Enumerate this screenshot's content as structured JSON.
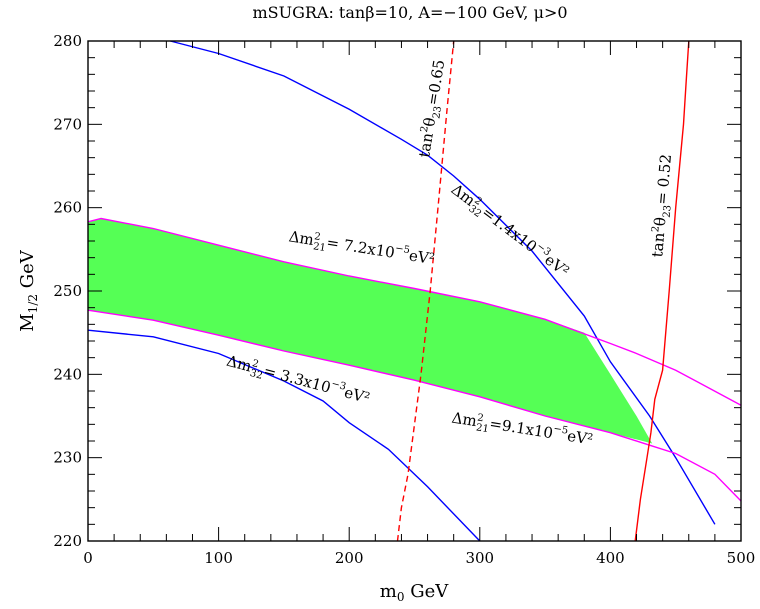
{
  "chart_data": {
    "type": "line",
    "title": "mSUGRA: tanβ=10, A=−100 GeV, μ>0",
    "xlabel": "m₀ GeV",
    "ylabel": "M₁/₂ GeV",
    "xlim": [
      0,
      500
    ],
    "ylim": [
      220,
      280
    ],
    "x_ticks": [
      0,
      100,
      200,
      300,
      400,
      500
    ],
    "y_ticks": [
      220,
      230,
      240,
      250,
      260,
      270,
      280
    ],
    "grid": false,
    "colors": {
      "blue": "#0000ff",
      "magenta": "#ff00ff",
      "red": "#ff0000",
      "band": "#55ff55"
    },
    "series": [
      {
        "name": "Δm²32 = 1.4x10⁻³eV²",
        "color": "#0000ff",
        "style": "solid",
        "x": [
          63,
          100,
          150,
          200,
          240,
          260,
          280,
          300,
          340,
          380,
          400,
          430,
          450,
          480
        ],
        "y": [
          280,
          278.5,
          275.8,
          271.8,
          268.2,
          266.3,
          263.8,
          261.0,
          254.8,
          247.0,
          241.5,
          235.0,
          230.0,
          222.0
        ]
      },
      {
        "name": "Δm²32 = 3.3x10⁻³eV²",
        "color": "#0000ff",
        "style": "solid",
        "x": [
          0,
          50,
          100,
          150,
          180,
          200,
          230,
          260,
          300
        ],
        "y": [
          245.3,
          244.5,
          242.5,
          239.2,
          236.8,
          234.2,
          231.0,
          226.5,
          220
        ]
      },
      {
        "name": "Δm²21 = 7.2x10⁻⁵eV²",
        "color": "#ff00ff",
        "style": "solid",
        "x": [
          0,
          10,
          50,
          100,
          150,
          200,
          250,
          300,
          350,
          400,
          420,
          450,
          500
        ],
        "y": [
          258.3,
          258.7,
          257.5,
          255.5,
          253.5,
          251.8,
          250.3,
          248.7,
          246.6,
          243.7,
          242.5,
          240.5,
          236.3
        ]
      },
      {
        "name": "Δm²21 = 9.1x10⁻⁵eV²",
        "color": "#ff00ff",
        "style": "solid",
        "x": [
          0,
          50,
          100,
          150,
          200,
          250,
          300,
          350,
          400,
          430,
          450,
          480,
          500
        ],
        "y": [
          247.7,
          246.5,
          244.7,
          242.8,
          241.1,
          239.3,
          237.3,
          235.0,
          233.0,
          231.5,
          230.5,
          228.0,
          224.8
        ]
      },
      {
        "name": "tan²θ23 = 0.65",
        "color": "#ff0000",
        "style": "dashed",
        "x": [
          237,
          240,
          245,
          255,
          262,
          268,
          275,
          280
        ],
        "y": [
          220,
          224,
          228,
          240,
          250,
          260,
          272,
          280
        ]
      },
      {
        "name": "tan²θ23 = 0.52",
        "color": "#ff0000",
        "style": "solid",
        "x": [
          419,
          423,
          428,
          431,
          434,
          440,
          445,
          450,
          453,
          456,
          458,
          460
        ],
        "y": [
          220,
          225,
          230,
          233,
          237,
          240.5,
          250,
          260,
          265,
          270,
          275,
          280
        ]
      }
    ],
    "band": {
      "color": "#55ff55",
      "upper_x": [
        0,
        10,
        50,
        100,
        150,
        200,
        250,
        300,
        350,
        380
      ],
      "upper_y": [
        258.3,
        258.7,
        257.5,
        255.5,
        253.5,
        251.8,
        250.3,
        248.7,
        246.6,
        245.0
      ],
      "right_x": [
        380,
        390,
        400,
        410,
        420,
        432
      ],
      "right_y": [
        245.0,
        242.5,
        240.0,
        237.5,
        235.0,
        231.7
      ],
      "lower_x": [
        432,
        400,
        350,
        300,
        250,
        200,
        150,
        100,
        50,
        0
      ],
      "lower_y": [
        231.7,
        233.0,
        235.0,
        237.3,
        239.3,
        241.1,
        242.8,
        244.7,
        246.5,
        247.7
      ]
    },
    "annotations": [
      {
        "id": "lbl-dm32-14",
        "x": 321,
        "y": 256.8,
        "base": "Δm",
        "sup": "2",
        "sub": "32",
        "rest": "=1.4x10",
        "exp": "−3",
        "unit": "eV²",
        "angle": 37
      },
      {
        "id": "lbl-dm32-33",
        "x": 160,
        "y": 238.8,
        "base": "Δm",
        "sup": "2",
        "sub": "32",
        "rest": "=  3.3x10",
        "exp": "−3",
        "unit": "eV²",
        "angle": 15
      },
      {
        "id": "lbl-dm21-72",
        "x": 209,
        "y": 254.6,
        "base": "Δm",
        "sup": "2",
        "sub": "21",
        "rest": "=  7.2x10",
        "exp": "−5",
        "unit": "eV²",
        "angle": 9
      },
      {
        "id": "lbl-dm21-91",
        "x": 332,
        "y": 232.9,
        "base": "Δm",
        "sup": "2",
        "sub": "21",
        "rest": "=9.1x10",
        "exp": "−5",
        "unit": "eV²",
        "angle": 9
      },
      {
        "id": "lbl-tan-065",
        "x": 267,
        "y": 271.8,
        "base": "tan",
        "sup": "2",
        "sub": "",
        "rest": "θ",
        "rest_sub": "23",
        "rest2": "=0.65",
        "angle": -81
      },
      {
        "id": "lbl-tan-052",
        "x": 443,
        "y": 260.2,
        "base": "tan",
        "sup": "2",
        "sub": "",
        "rest": "θ",
        "rest_sub": "23",
        "rest2": "=  0.52",
        "angle": -85
      }
    ]
  }
}
